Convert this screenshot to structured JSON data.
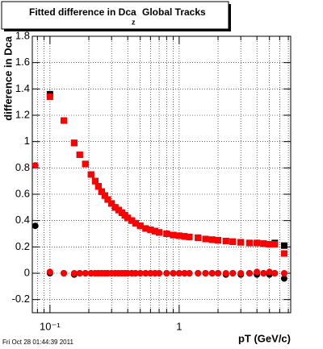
{
  "chart_data": {
    "type": "scatter",
    "title": "Fitted difference in Dca",
    "title_subscript": "z",
    "subtitle": "Global Tracks",
    "x_label": "pT (GeV/c)",
    "y_label": "difference in Dca",
    "footer": "Fri Oct 28 01:44:39 2011",
    "log_x": true,
    "grid": true,
    "xlim": [
      0.073,
      7.3
    ],
    "ylim": [
      -0.3,
      1.8
    ],
    "xticks": [
      {
        "value": 0.08,
        "label": null
      },
      {
        "value": 0.09,
        "label": null
      },
      {
        "value": 0.1,
        "label": "10⁻¹"
      },
      {
        "value": 0.2,
        "label": null
      },
      {
        "value": 0.3,
        "label": null
      },
      {
        "value": 0.4,
        "label": null
      },
      {
        "value": 0.5,
        "label": null
      },
      {
        "value": 0.6,
        "label": null
      },
      {
        "value": 0.7,
        "label": null
      },
      {
        "value": 0.8,
        "label": null
      },
      {
        "value": 0.9,
        "label": null
      },
      1,
      {
        "value": 2,
        "label": null
      },
      {
        "value": 3,
        "label": null
      },
      {
        "value": 4,
        "label": null
      },
      {
        "value": 5,
        "label": null
      },
      {
        "value": 6,
        "label": null
      },
      {
        "value": 7,
        "label": null
      }
    ],
    "yticks": [
      -0.2,
      0,
      0.2,
      0.4,
      0.6,
      0.8,
      1,
      1.2,
      1.4,
      1.6,
      1.8
    ],
    "x": [
      0.077,
      0.1,
      0.128,
      0.154,
      0.17,
      0.188,
      0.208,
      0.224,
      0.237,
      0.251,
      0.266,
      0.28,
      0.3,
      0.32,
      0.34,
      0.36,
      0.38,
      0.4,
      0.43,
      0.46,
      0.5,
      0.55,
      0.6,
      0.65,
      0.7,
      0.8,
      0.9,
      1.0,
      1.1,
      1.2,
      1.4,
      1.6,
      1.8,
      2.0,
      2.3,
      2.6,
      3.0,
      3.5,
      4.0,
      4.5,
      5.0,
      5.5,
      6.5
    ],
    "series": [
      {
        "color": "#000000",
        "marker": "square",
        "values": [
          null,
          1.36,
          1.16,
          0.99,
          0.9,
          0.83,
          0.75,
          0.7,
          0.66,
          0.62,
          0.59,
          0.56,
          0.53,
          0.5,
          0.48,
          0.46,
          0.44,
          0.42,
          0.4,
          0.38,
          0.36,
          0.34,
          0.33,
          0.32,
          0.31,
          0.3,
          0.29,
          0.285,
          0.28,
          0.275,
          0.27,
          0.26,
          0.255,
          0.25,
          0.245,
          0.24,
          0.235,
          0.23,
          0.23,
          0.225,
          0.22,
          0.23,
          0.21
        ]
      },
      {
        "color": "#000000",
        "marker": "circle",
        "values": [
          0.36,
          0.0,
          0.0,
          -0.01,
          0.0,
          0.0,
          0.0,
          0.0,
          0.0,
          0.0,
          0.0,
          0.0,
          0.0,
          0.0,
          0.0,
          0.0,
          0.0,
          0.0,
          0.0,
          0.0,
          0.0,
          0.0,
          0.0,
          0.0,
          0.0,
          0.0,
          0.0,
          0.0,
          0.0,
          0.0,
          0.0,
          0.0,
          0.0,
          0.0,
          -0.01,
          0.0,
          -0.01,
          0.0,
          -0.01,
          0.0,
          -0.01,
          0.0,
          -0.04
        ]
      },
      {
        "color": "#ff0000",
        "marker": "square",
        "values": [
          null,
          1.34,
          1.16,
          0.99,
          0.9,
          0.83,
          0.75,
          0.7,
          0.66,
          0.62,
          0.59,
          0.56,
          0.53,
          0.5,
          0.48,
          0.46,
          0.44,
          0.42,
          0.4,
          0.38,
          0.36,
          0.34,
          0.33,
          0.32,
          0.31,
          0.3,
          0.29,
          0.285,
          0.28,
          0.275,
          0.27,
          0.26,
          0.255,
          0.25,
          0.245,
          0.24,
          0.235,
          0.23,
          0.23,
          0.225,
          0.22,
          0.22,
          0.15
        ]
      },
      {
        "color": "#ff0000",
        "marker": "circle",
        "values": [
          0.82,
          0.01,
          0.0,
          0.0,
          0.0,
          0.0,
          0.0,
          0.0,
          0.0,
          0.0,
          0.0,
          0.0,
          0.0,
          0.0,
          0.0,
          0.0,
          0.0,
          0.0,
          0.0,
          0.0,
          0.0,
          0.0,
          0.0,
          0.0,
          0.0,
          0.0,
          0.0,
          0.0,
          0.0,
          0.0,
          0.0,
          0.0,
          0.0,
          0.0,
          0.0,
          0.0,
          0.0,
          0.0,
          0.01,
          0.0,
          0.01,
          0.0,
          0.0
        ]
      }
    ]
  }
}
